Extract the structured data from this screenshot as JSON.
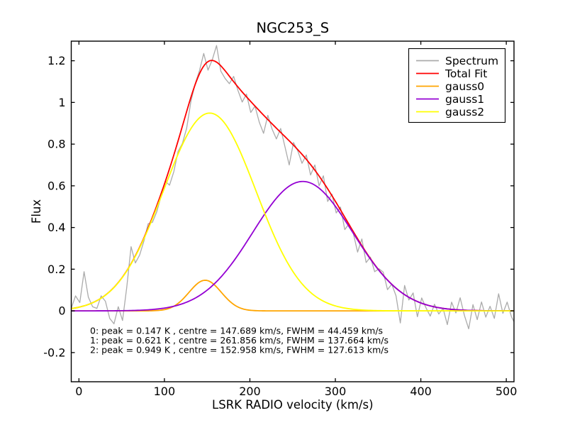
{
  "chart_data": {
    "type": "line",
    "title": "NGC253_S",
    "xlabel": "LSRK RADIO velocity (km/s)",
    "ylabel": "Flux",
    "xlim": [
      -9,
      509
    ],
    "ylim": [
      -0.34,
      1.294
    ],
    "grid": false,
    "legend_position": "upper-right",
    "xticks": [
      {
        "value": 0,
        "label": "0"
      },
      {
        "value": 100,
        "label": "100"
      },
      {
        "value": 200,
        "label": "200"
      },
      {
        "value": 300,
        "label": "300"
      },
      {
        "value": 400,
        "label": "400"
      },
      {
        "value": 500,
        "label": "500"
      }
    ],
    "yticks": [
      {
        "value": -0.2,
        "label": "-0.2"
      },
      {
        "value": 0,
        "label": "0"
      },
      {
        "value": 0.2,
        "label": "0.2"
      },
      {
        "value": 0.4,
        "label": "0.4"
      },
      {
        "value": 0.6,
        "label": "0.6"
      },
      {
        "value": 0.8,
        "label": "0.8"
      },
      {
        "value": 1,
        "label": "1"
      },
      {
        "value": 1.2,
        "label": "1.2"
      }
    ],
    "series": [
      {
        "name": "Spectrum",
        "color": "#ababab",
        "kind": "data",
        "x": [
          -9,
          -4,
          1,
          6,
          11,
          16,
          21,
          26,
          31,
          36,
          41,
          46,
          51,
          56,
          61,
          66,
          71,
          76,
          81,
          86,
          91,
          96,
          101,
          106,
          111,
          116,
          121,
          126,
          131,
          136,
          141,
          146,
          151,
          156,
          161,
          166,
          171,
          176,
          181,
          186,
          191,
          196,
          201,
          206,
          211,
          216,
          221,
          226,
          231,
          236,
          241,
          246,
          251,
          256,
          261,
          266,
          271,
          276,
          281,
          286,
          291,
          296,
          301,
          306,
          311,
          316,
          321,
          326,
          331,
          336,
          341,
          346,
          351,
          356,
          361,
          366,
          371,
          376,
          381,
          386,
          391,
          396,
          401,
          406,
          411,
          416,
          421,
          426,
          431,
          436,
          441,
          446,
          451,
          456,
          461,
          466,
          471,
          476,
          481,
          486,
          491,
          496,
          501,
          506,
          509
        ],
        "y": [
          0.012,
          0.072,
          0.04,
          0.188,
          0.066,
          0.02,
          0.012,
          0.072,
          0.046,
          -0.036,
          -0.062,
          0.02,
          -0.046,
          0.115,
          0.308,
          0.23,
          0.268,
          0.335,
          0.418,
          0.425,
          0.475,
          0.548,
          0.622,
          0.603,
          0.668,
          0.765,
          0.803,
          0.876,
          1.005,
          1.09,
          1.152,
          1.235,
          1.155,
          1.205,
          1.273,
          1.15,
          1.115,
          1.09,
          1.125,
          1.058,
          1.002,
          1.04,
          0.952,
          0.982,
          0.905,
          0.852,
          0.938,
          0.872,
          0.825,
          0.875,
          0.788,
          0.7,
          0.808,
          0.768,
          0.708,
          0.748,
          0.652,
          0.7,
          0.6,
          0.648,
          0.525,
          0.56,
          0.47,
          0.498,
          0.39,
          0.418,
          0.372,
          0.282,
          0.345,
          0.232,
          0.258,
          0.188,
          0.202,
          0.186,
          0.102,
          0.128,
          0.072,
          -0.058,
          0.122,
          0.052,
          0.086,
          -0.028,
          0.062,
          0.015,
          -0.025,
          0.032,
          -0.015,
          0.012,
          -0.066,
          0.042,
          -0.01,
          0.063,
          -0.022,
          -0.086,
          0.03,
          -0.042,
          0.043,
          -0.03,
          0.022,
          -0.036,
          0.082,
          -0.012,
          0.042,
          -0.028,
          -0.052
        ]
      },
      {
        "name": "Total Fit",
        "color": "#ff0000",
        "kind": "sum-of-gaussians"
      },
      {
        "name": "gauss0",
        "color": "#ffa500",
        "kind": "gaussian",
        "peak": 0.147,
        "centre": 147.689,
        "fwhm": 44.459
      },
      {
        "name": "gauss1",
        "color": "#9400d3",
        "kind": "gaussian",
        "peak": 0.621,
        "centre": 261.856,
        "fwhm": 137.664
      },
      {
        "name": "gauss2",
        "color": "#ffff00",
        "kind": "gaussian",
        "peak": 0.949,
        "centre": 152.958,
        "fwhm": 127.613
      }
    ],
    "annotations": [
      "0: peak = 0.147 K , centre = 147.689 km/s, FWHM = 44.459 km/s",
      "1: peak = 0.621 K , centre = 261.856 km/s, FWHM = 137.664 km/s",
      "2: peak = 0.949 K , centre = 152.958 km/s, FWHM = 127.613 km/s"
    ]
  }
}
